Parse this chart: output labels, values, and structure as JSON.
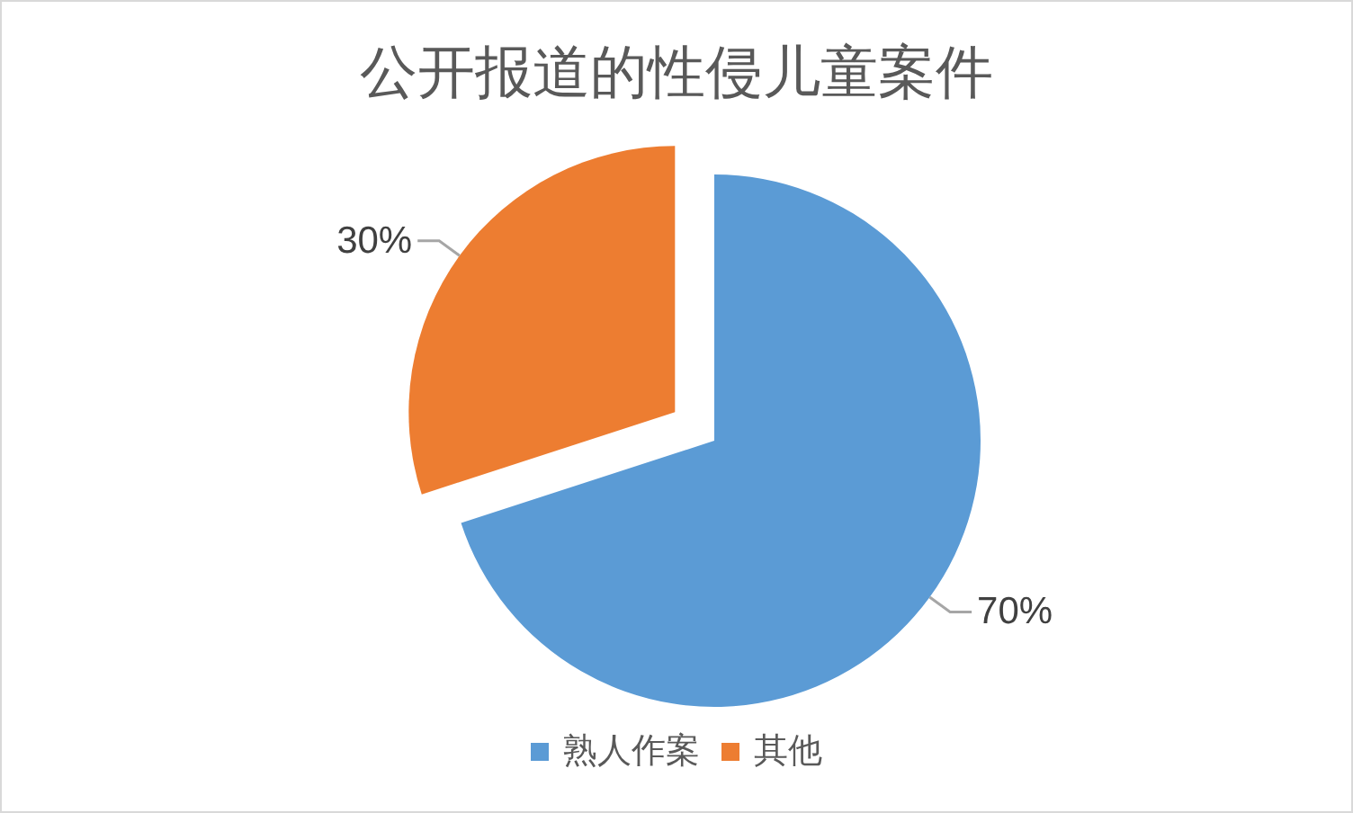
{
  "chart_data": {
    "type": "pie",
    "title": "公开报道的性侵儿童案件",
    "categories": [
      "熟人作案",
      "其他"
    ],
    "values": [
      70,
      30
    ],
    "colors": [
      "#5b9bd5",
      "#ed7d31"
    ],
    "value_labels": [
      "70%",
      "30%"
    ],
    "legend": "bottom"
  }
}
